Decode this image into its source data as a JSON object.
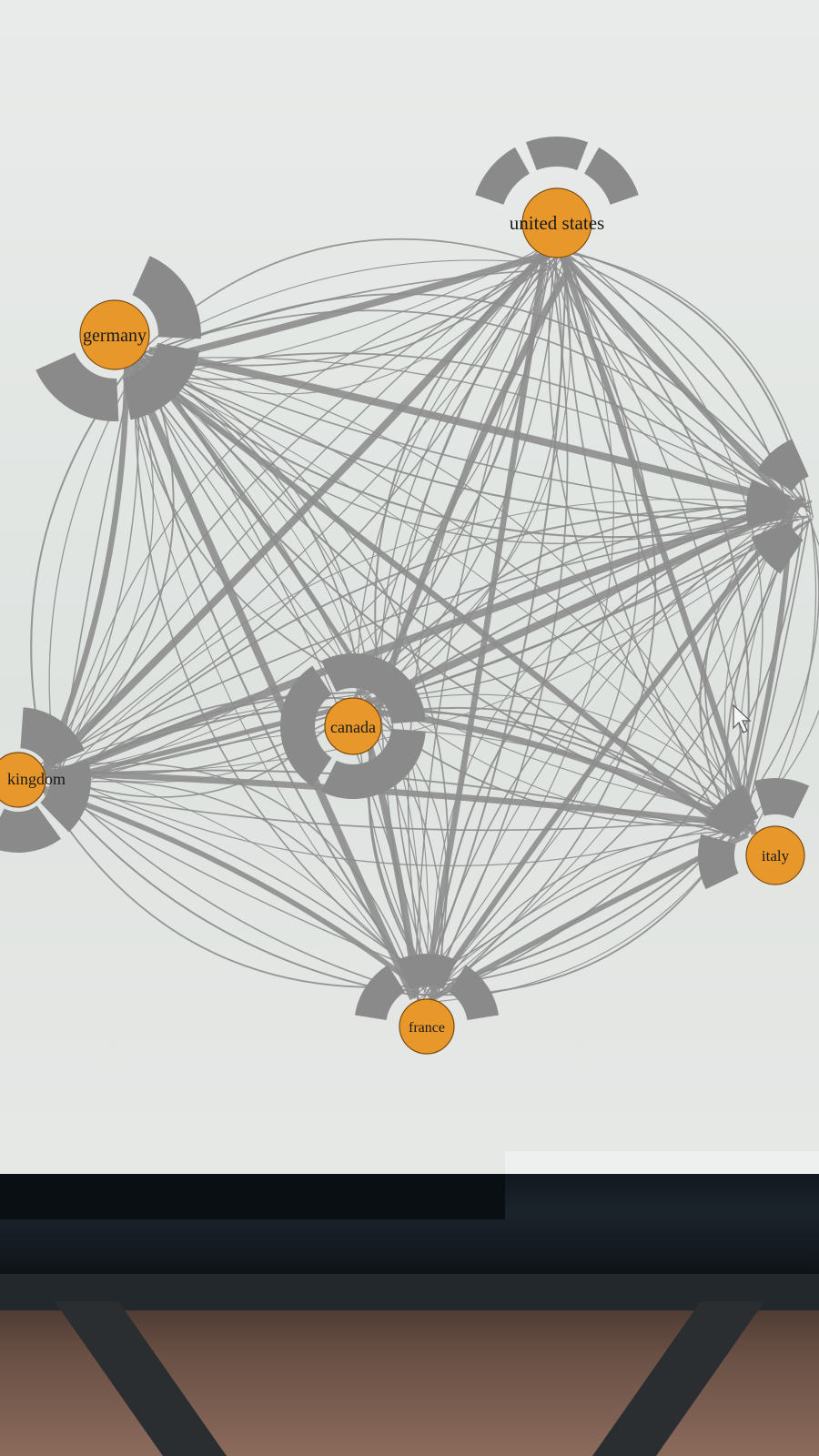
{
  "nodes": [
    {
      "id": "united-states",
      "label": "united states"
    },
    {
      "id": "germany",
      "label": "germany"
    },
    {
      "id": "canada",
      "label": "canada"
    },
    {
      "id": "kingdom",
      "label": "kingdom"
    },
    {
      "id": "italy",
      "label": "italy"
    },
    {
      "id": "france",
      "label": "france"
    },
    {
      "id": "offscreen-right",
      "label": ""
    }
  ],
  "colors": {
    "node_fill": "#e8982a",
    "node_stroke": "#7a4a10",
    "edge": "#8d8d8d",
    "arc": "#8a8a8a"
  }
}
